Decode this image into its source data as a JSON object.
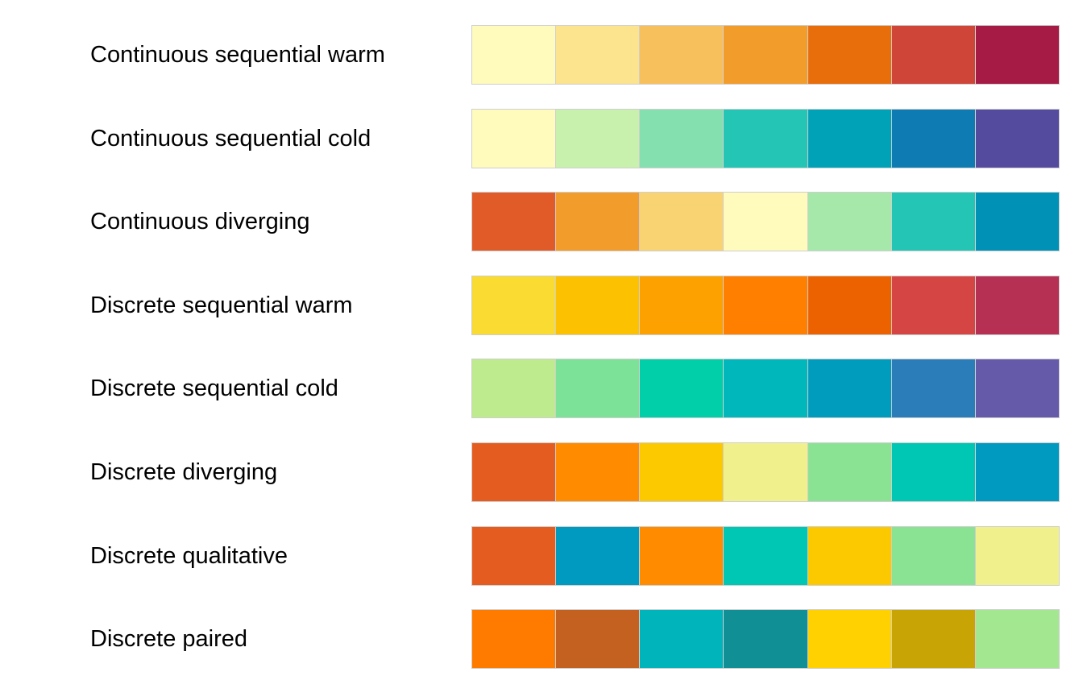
{
  "palettes": [
    {
      "label": "Continuous sequential warm",
      "colors": [
        "#FEFBBD",
        "#FCE38D",
        "#F8C05C",
        "#F29C2B",
        "#E86D0B",
        "#CF4538",
        "#A61B45"
      ]
    },
    {
      "label": "Continuous sequential cold",
      "colors": [
        "#FEFBBD",
        "#C8F1AE",
        "#84E0AE",
        "#24C5B5",
        "#00A2B8",
        "#0E7CB2",
        "#544B9E"
      ]
    },
    {
      "label": "Continuous diverging",
      "colors": [
        "#E05B28",
        "#F29C2B",
        "#F9D372",
        "#FEFBBD",
        "#A5E8AA",
        "#24C5B5",
        "#0092B6"
      ]
    },
    {
      "label": "Discrete sequential warm",
      "colors": [
        "#F9DB32",
        "#FCC100",
        "#FCA100",
        "#FF8000",
        "#EC6200",
        "#D54544",
        "#B53053"
      ]
    },
    {
      "label": "Discrete sequential cold",
      "colors": [
        "#BEEB8D",
        "#7CE298",
        "#00CFAA",
        "#00B8BB",
        "#009CBE",
        "#2A7DB8",
        "#6559A9"
      ]
    },
    {
      "label": "Discrete diverging",
      "colors": [
        "#E55C20",
        "#FF8C00",
        "#FCC800",
        "#F0F08C",
        "#89E393",
        "#00C7B3",
        "#0099C0"
      ]
    },
    {
      "label": "Discrete qualitative",
      "colors": [
        "#E55C20",
        "#0099C0",
        "#FF8C00",
        "#00C7B3",
        "#FCC800",
        "#89E393",
        "#F0F08C"
      ]
    },
    {
      "label": "Discrete paired",
      "colors": [
        "#FF7B00",
        "#C46121",
        "#00B4BB",
        "#108F95",
        "#FFD100",
        "#C8A505",
        "#A3E890"
      ]
    }
  ]
}
